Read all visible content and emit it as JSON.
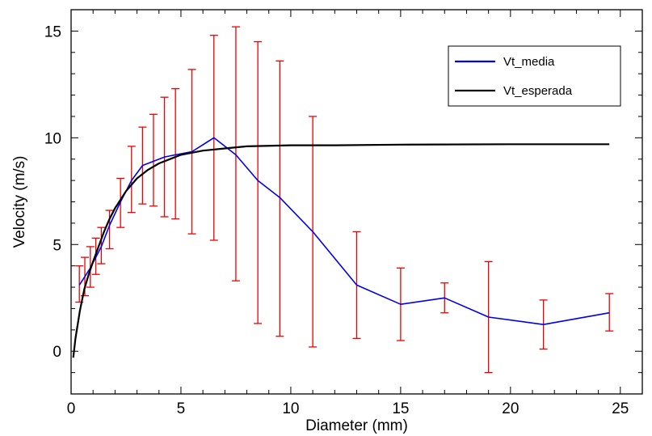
{
  "chart_data": {
    "type": "line",
    "title": "",
    "xlabel": "Diameter (mm)",
    "ylabel": "Velocity (m/s)",
    "xlim": [
      0,
      26
    ],
    "ylim": [
      -2,
      16
    ],
    "x_ticks": [
      0,
      5,
      10,
      15,
      20,
      25
    ],
    "y_ticks": [
      0,
      5,
      10,
      15
    ],
    "grid": false,
    "legend_position": "top-right",
    "series": [
      {
        "name": "Vt_media",
        "color": "#0000ee",
        "x": [
          0.375,
          0.625,
          0.875,
          1.125,
          1.375,
          1.75,
          2.25,
          2.75,
          3.25,
          3.75,
          4.25,
          4.75,
          5.5,
          6.5,
          7.5,
          8.5,
          9.5,
          11,
          13,
          15,
          17,
          19,
          21.5,
          24.5
        ],
        "y": [
          3.1,
          3.5,
          3.9,
          4.4,
          4.9,
          5.9,
          7.0,
          8.0,
          8.7,
          8.9,
          9.1,
          9.2,
          9.35,
          10.0,
          9.2,
          8.0,
          7.2,
          5.6,
          3.1,
          2.2,
          2.5,
          1.6,
          1.25,
          1.8
        ],
        "error_low": [
          2.3,
          2.6,
          3.0,
          3.6,
          4.1,
          4.8,
          5.8,
          6.5,
          6.9,
          6.8,
          6.3,
          6.2,
          5.5,
          5.2,
          3.3,
          1.3,
          0.7,
          0.2,
          0.6,
          0.5,
          1.8,
          -1.0,
          0.1,
          0.95
        ],
        "error_high": [
          4.0,
          4.4,
          4.9,
          5.3,
          5.8,
          6.6,
          8.1,
          9.6,
          10.5,
          11.1,
          11.9,
          12.3,
          13.2,
          14.8,
          15.2,
          14.5,
          13.6,
          11.0,
          5.6,
          3.9,
          3.2,
          4.2,
          2.4,
          2.7
        ],
        "error_color": "#ee0000"
      },
      {
        "name": "Vt_esperada",
        "color": "#000000",
        "x": [
          0.1,
          0.2,
          0.4,
          0.6,
          0.8,
          1.0,
          1.25,
          1.5,
          1.75,
          2.0,
          2.5,
          3.0,
          3.5,
          4.0,
          4.5,
          5.0,
          5.5,
          6.0,
          7.0,
          8.0,
          10.0,
          12.0,
          15.0,
          20.0,
          24.5
        ],
        "y": [
          -0.3,
          0.6,
          1.9,
          2.9,
          3.6,
          4.2,
          4.9,
          5.6,
          6.2,
          6.7,
          7.5,
          8.1,
          8.5,
          8.8,
          9.0,
          9.2,
          9.3,
          9.4,
          9.5,
          9.6,
          9.65,
          9.65,
          9.68,
          9.7,
          9.7
        ]
      }
    ]
  }
}
